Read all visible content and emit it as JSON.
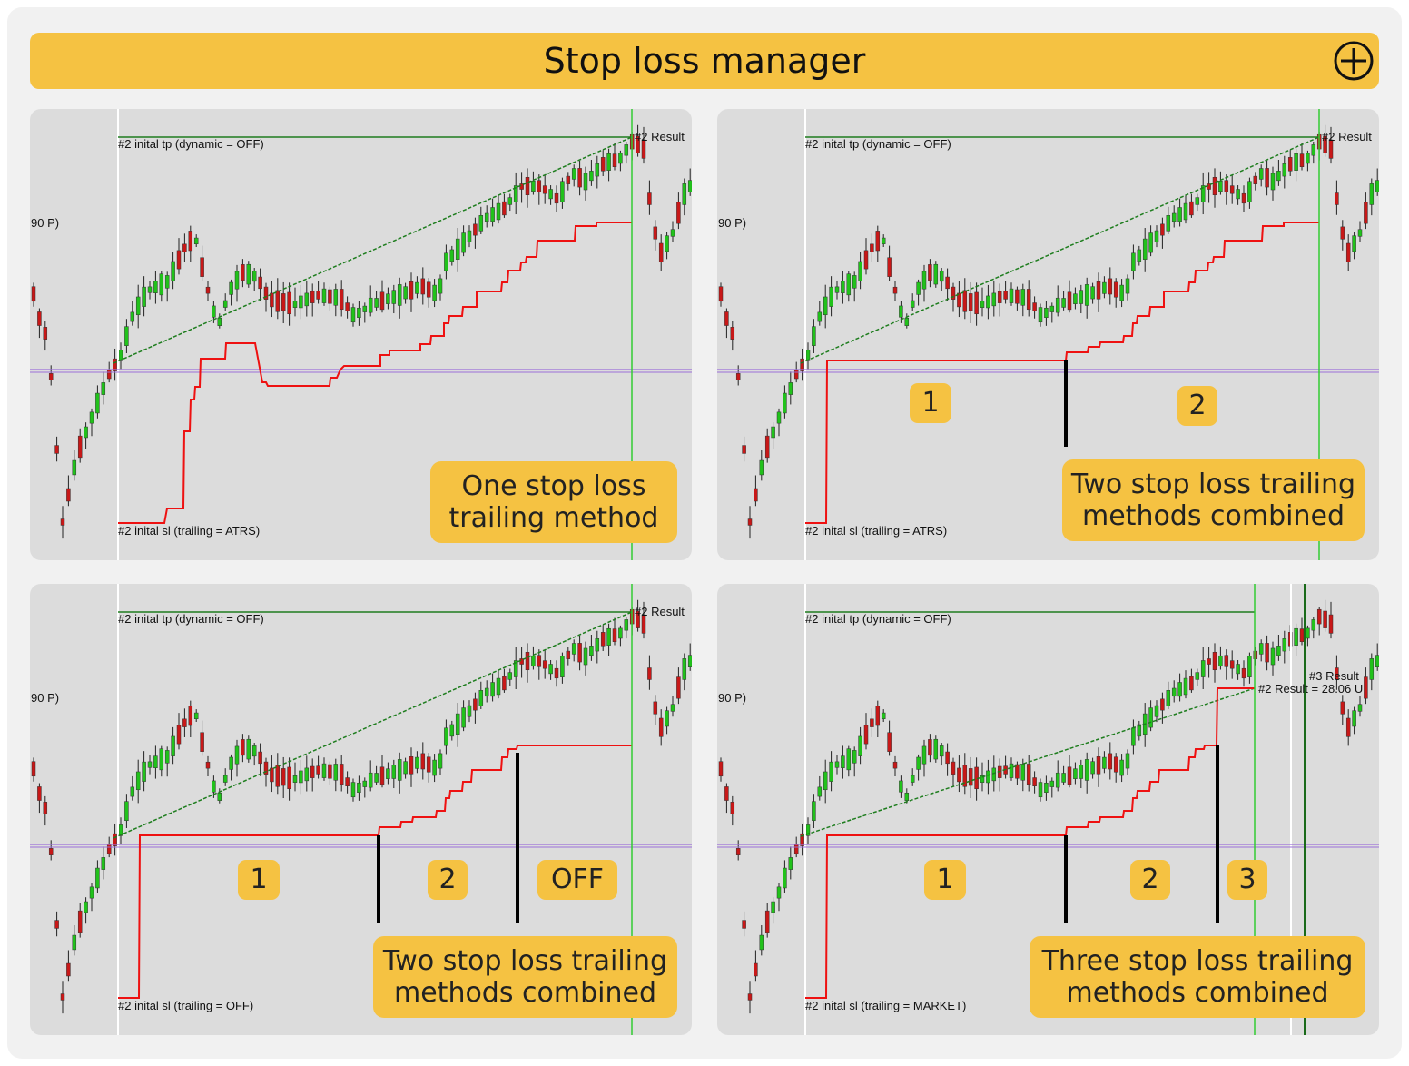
{
  "header": {
    "title": "Stop loss manager",
    "action_icon": "circle-plus-icon"
  },
  "colors": {
    "accent": "#f5c242",
    "panel_bg": "#dcdcdc",
    "tp_line": "#1e7d1e",
    "sl_line": "#ee1111",
    "entry_line": "#9b6fd8",
    "bull_candle": "#21c21b",
    "bear_candle": "#c81818",
    "exit_line": "#33cc33"
  },
  "panels": [
    {
      "tp_label": "#2 inital tp (dynamic = OFF)",
      "sl_label": "#2 inital sl (trailing = ATRS)",
      "price_label": "90 P)",
      "result_label": "#2 Result",
      "badges": [],
      "caption": [
        "One stop loss",
        "trailing method"
      ]
    },
    {
      "tp_label": "#2 inital tp (dynamic = OFF)",
      "sl_label": "#2 inital sl (trailing = ATRS)",
      "price_label": "90 P)",
      "result_label": "#2 Result",
      "badges": [
        "1",
        "2"
      ],
      "caption": [
        "Two stop loss trailing",
        "methods combined"
      ]
    },
    {
      "tp_label": "#2 inital tp (dynamic = OFF)",
      "sl_label": "#2 inital sl (trailing = OFF)",
      "price_label": "90 P)",
      "result_label": "#2 Result",
      "badges": [
        "1",
        "2",
        "OFF"
      ],
      "caption": [
        "Two stop loss trailing",
        "methods combined"
      ]
    },
    {
      "tp_label": "#2 inital tp (dynamic = OFF)",
      "sl_label": "#2 inital sl (trailing = MARKET)",
      "price_label": "90 P)",
      "result_label": "#2 Result = 28.06 U",
      "result_label_2": "#3 Result",
      "badges": [
        "1",
        "2",
        "3"
      ],
      "caption": [
        "Three stop loss trailing",
        "methods combined"
      ]
    }
  ]
}
